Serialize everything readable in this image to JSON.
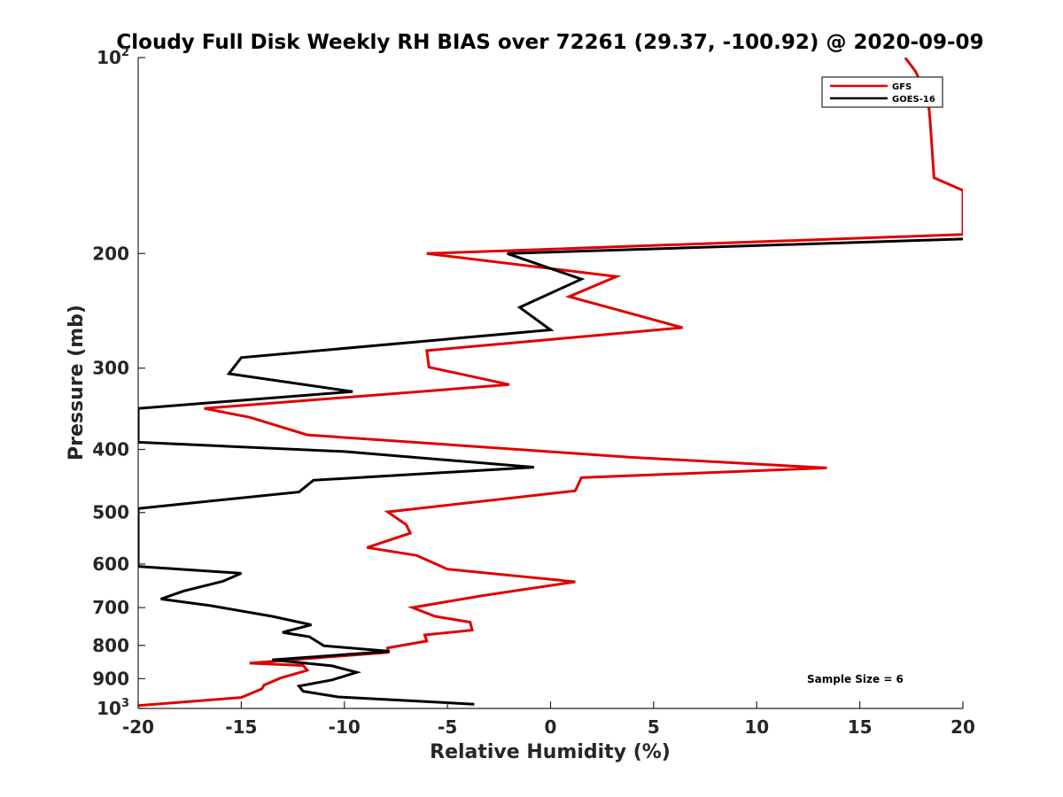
{
  "chart_data": {
    "type": "line",
    "title": "Cloudy Full Disk Weekly RH BIAS over 72261 (29.37, -100.92) @ 2020-09-09",
    "xlabel": "Relative Humidity (%)",
    "ylabel": "Pressure (mb)",
    "xlim": [
      -20,
      20
    ],
    "ylim": [
      100,
      1000
    ],
    "yscale": "log",
    "y_reversed": true,
    "grid": false,
    "legend_position": "top-right",
    "x_ticks": [
      "-20",
      "-15",
      "-10",
      "-5",
      "0",
      "5",
      "10",
      "15",
      "20"
    ],
    "y_ticks": [
      {
        "base": "10",
        "exp": "2",
        "value": 100
      },
      {
        "label": "200",
        "value": 200
      },
      {
        "label": "300",
        "value": 300
      },
      {
        "label": "400",
        "value": 400
      },
      {
        "label": "500",
        "value": 500
      },
      {
        "label": "600",
        "value": 600
      },
      {
        "label": "700",
        "value": 700
      },
      {
        "label": "800",
        "value": 800
      },
      {
        "label": "900",
        "value": 900
      },
      {
        "base": "10",
        "exp": "3",
        "value": 1000
      }
    ],
    "annotation": "Sample Size = 6",
    "series": [
      {
        "name": "GFS",
        "color": "#e00000",
        "points": [
          [
            17.2,
            100
          ],
          [
            17.7,
            105
          ],
          [
            18.3,
            115
          ],
          [
            18.4,
            124
          ],
          [
            18.6,
            153
          ],
          [
            20.0,
            160
          ],
          [
            20.0,
            187
          ],
          [
            -6.0,
            200
          ],
          [
            3.2,
            217
          ],
          [
            0.9,
            233
          ],
          [
            6.4,
            260
          ],
          [
            -6.0,
            282
          ],
          [
            -5.9,
            299
          ],
          [
            -2.0,
            318
          ],
          [
            -16.8,
            346
          ],
          [
            -14.6,
            357
          ],
          [
            -11.8,
            380
          ],
          [
            3.8,
            411
          ],
          [
            13.4,
            427
          ],
          [
            1.5,
            442
          ],
          [
            1.2,
            463
          ],
          [
            -7.9,
            499
          ],
          [
            -7.0,
            522
          ],
          [
            -6.8,
            538
          ],
          [
            -8.9,
            566
          ],
          [
            -6.5,
            582
          ],
          [
            -5.0,
            611
          ],
          [
            1.2,
            639
          ],
          [
            -3.3,
            671
          ],
          [
            -6.7,
            700
          ],
          [
            -5.6,
            722
          ],
          [
            -3.9,
            737
          ],
          [
            -3.8,
            758
          ],
          [
            -6.1,
            771
          ],
          [
            -6.0,
            788
          ],
          [
            -7.9,
            807
          ],
          [
            -7.9,
            820
          ],
          [
            -14.6,
            852
          ],
          [
            -12.0,
            859
          ],
          [
            -11.8,
            874
          ],
          [
            -13.1,
            898
          ],
          [
            -13.9,
            921
          ],
          [
            -14.0,
            933
          ],
          [
            -15.0,
            962
          ],
          [
            -20.0,
            990
          ]
        ]
      },
      {
        "name": "GOES-16",
        "color": "#000000",
        "points": [
          [
            20.0,
            190
          ],
          [
            -2.1,
            200
          ],
          [
            1.5,
            219
          ],
          [
            -1.5,
            242
          ],
          [
            0.0,
            262
          ],
          [
            -15.0,
            289
          ],
          [
            -15.6,
            306
          ],
          [
            -9.6,
            326
          ],
          [
            -20.0,
            346
          ],
          [
            -20.0,
            390
          ],
          [
            -10.0,
            403
          ],
          [
            -0.8,
            426
          ],
          [
            -11.5,
            446
          ],
          [
            -12.2,
            465
          ],
          [
            -20.0,
            493
          ],
          [
            -20.0,
            605
          ],
          [
            -15.0,
            620
          ],
          [
            -15.9,
            638
          ],
          [
            -17.8,
            660
          ],
          [
            -18.9,
            679
          ],
          [
            -16.5,
            695
          ],
          [
            -13.5,
            722
          ],
          [
            -11.6,
            744
          ],
          [
            -13.0,
            764
          ],
          [
            -11.7,
            776
          ],
          [
            -11.0,
            801
          ],
          [
            -7.8,
            817
          ],
          [
            -13.5,
            842
          ],
          [
            -10.6,
            860
          ],
          [
            -9.4,
            880
          ],
          [
            -10.6,
            904
          ],
          [
            -12.2,
            924
          ],
          [
            -12.0,
            941
          ],
          [
            -10.3,
            960
          ],
          [
            -3.7,
            985
          ]
        ]
      }
    ]
  }
}
